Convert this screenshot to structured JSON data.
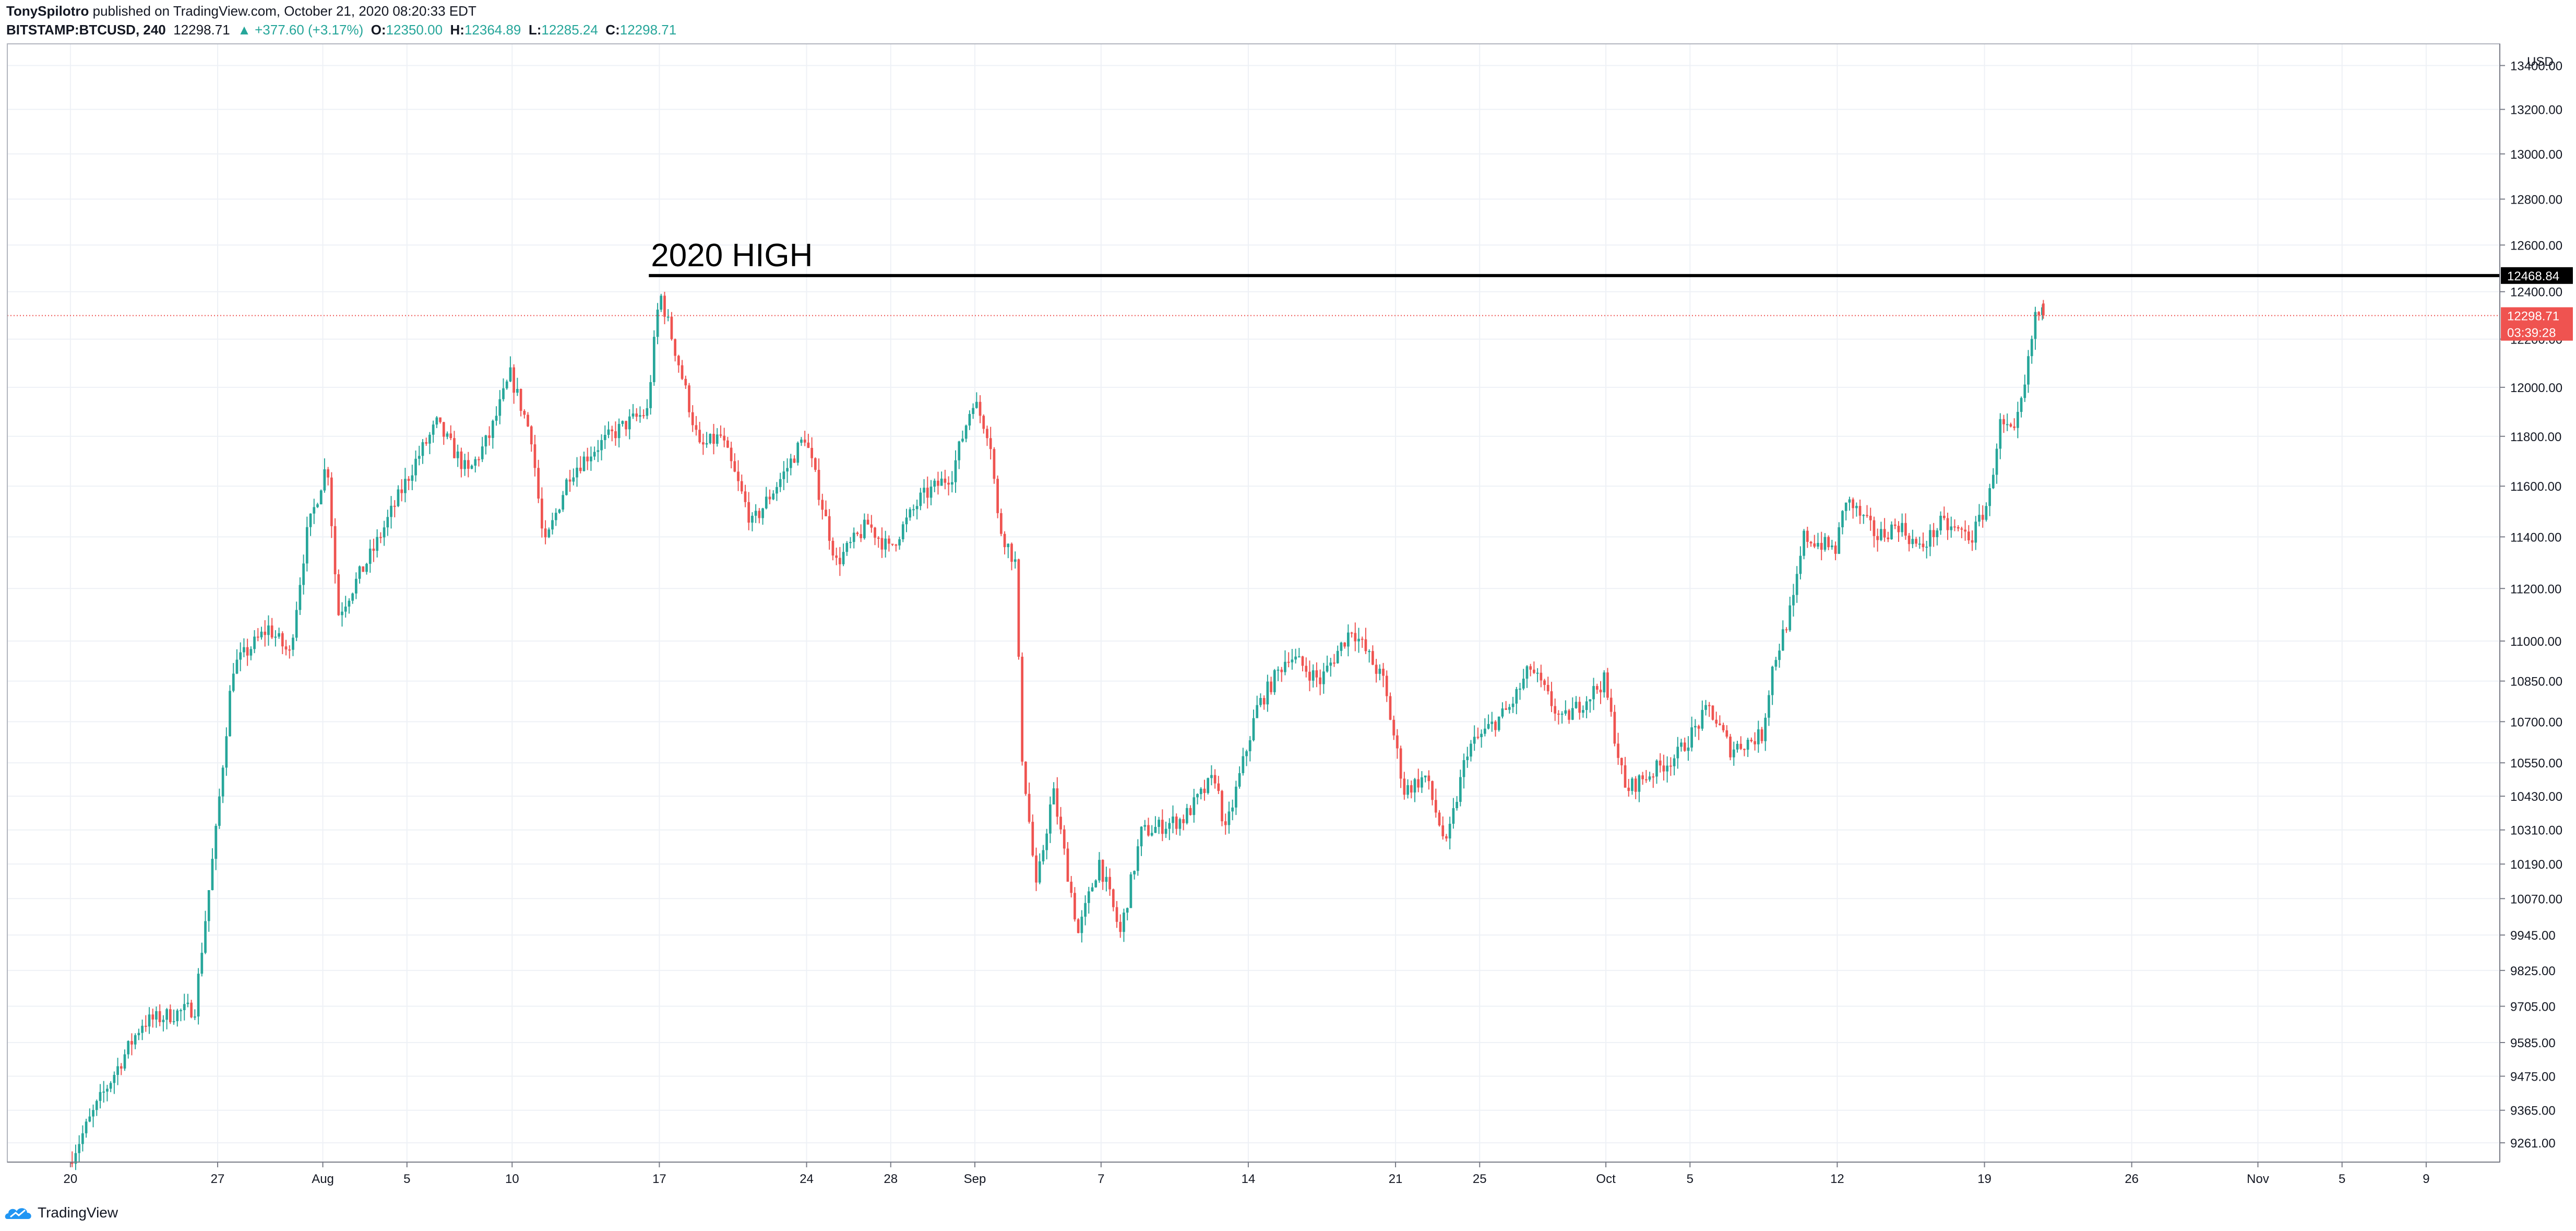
{
  "header": {
    "author": "TonySpilotro",
    "published_text": " published on TradingView.com, October 21, 2020 08:20:33 EDT",
    "symbol": "BITSTAMP:BTCUSD, 240",
    "last": "12298.71",
    "change": "▲ +377.60 (+3.17%)",
    "o_label": "O:",
    "o_value": "12350.00",
    "h_label": "H:",
    "h_value": "12364.89",
    "l_label": "L:",
    "l_value": "12285.24",
    "c_label": "C:",
    "c_value": "12298.71"
  },
  "footer": {
    "brand": "TradingView"
  },
  "colors": {
    "up": "#26a69a",
    "down": "#ef5350",
    "grid": "#eef1f6",
    "text": "#131722",
    "border": "#787b86"
  },
  "chart_data": {
    "type": "candlestick",
    "currency_label": "USD",
    "ylim": [
      9200,
      13500
    ],
    "y_ticks": [
      {
        "v": 9261,
        "label": "9261.00"
      },
      {
        "v": 9365,
        "label": "9365.00"
      },
      {
        "v": 9475,
        "label": "9475.00"
      },
      {
        "v": 9585,
        "label": "9585.00"
      },
      {
        "v": 9705,
        "label": "9705.00"
      },
      {
        "v": 9825,
        "label": "9825.00"
      },
      {
        "v": 9945,
        "label": "9945.00"
      },
      {
        "v": 10070,
        "label": "10070.00"
      },
      {
        "v": 10190,
        "label": "10190.00"
      },
      {
        "v": 10310,
        "label": "10310.00"
      },
      {
        "v": 10430,
        "label": "10430.00"
      },
      {
        "v": 10550,
        "label": "10550.00"
      },
      {
        "v": 10700,
        "label": "10700.00"
      },
      {
        "v": 10850,
        "label": "10850.00"
      },
      {
        "v": 11000,
        "label": "11000.00"
      },
      {
        "v": 11200,
        "label": "11200.00"
      },
      {
        "v": 11400,
        "label": "11400.00"
      },
      {
        "v": 11600,
        "label": "11600.00"
      },
      {
        "v": 11800,
        "label": "11800.00"
      },
      {
        "v": 12000,
        "label": "12000.00"
      },
      {
        "v": 12200,
        "label": "12200.00"
      },
      {
        "v": 12400,
        "label": "12400.00"
      },
      {
        "v": 12600,
        "label": "12600.00"
      },
      {
        "v": 12800,
        "label": "12800.00"
      },
      {
        "v": 13000,
        "label": "13000.00"
      },
      {
        "v": 13200,
        "label": "13200.00"
      },
      {
        "v": 13400,
        "label": "13400.00"
      }
    ],
    "x_ticks": [
      {
        "day": 0,
        "label": "20"
      },
      {
        "day": 7,
        "label": "27"
      },
      {
        "day": 12,
        "label": "Aug"
      },
      {
        "day": 16,
        "label": "5"
      },
      {
        "day": 21,
        "label": "10"
      },
      {
        "day": 28,
        "label": "17"
      },
      {
        "day": 35,
        "label": "24"
      },
      {
        "day": 39,
        "label": "28"
      },
      {
        "day": 43,
        "label": "Sep"
      },
      {
        "day": 49,
        "label": "7"
      },
      {
        "day": 56,
        "label": "14"
      },
      {
        "day": 63,
        "label": "21"
      },
      {
        "day": 67,
        "label": "25"
      },
      {
        "day": 73,
        "label": "Oct"
      },
      {
        "day": 77,
        "label": "5"
      },
      {
        "day": 84,
        "label": "12"
      },
      {
        "day": 91,
        "label": "19"
      },
      {
        "day": 98,
        "label": "26"
      },
      {
        "day": 104,
        "label": "Nov"
      },
      {
        "day": 108,
        "label": "5"
      },
      {
        "day": 112,
        "label": "9"
      }
    ],
    "x_domain_days": [
      -3,
      115.5
    ],
    "key_points": [
      {
        "day": 0.0,
        "price": 9200
      },
      {
        "day": 1.5,
        "price": 9400
      },
      {
        "day": 3.5,
        "price": 9650
      },
      {
        "day": 6.0,
        "price": 9700
      },
      {
        "day": 7.0,
        "price": 10300
      },
      {
        "day": 7.8,
        "price": 10900
      },
      {
        "day": 9.5,
        "price": 11050
      },
      {
        "day": 10.5,
        "price": 10950
      },
      {
        "day": 11.3,
        "price": 11400
      },
      {
        "day": 12.3,
        "price": 11700
      },
      {
        "day": 12.8,
        "price": 11100
      },
      {
        "day": 14.5,
        "price": 11350
      },
      {
        "day": 16.5,
        "price": 11700
      },
      {
        "day": 17.5,
        "price": 11850
      },
      {
        "day": 19.0,
        "price": 11650
      },
      {
        "day": 20.0,
        "price": 11800
      },
      {
        "day": 21.0,
        "price": 12050
      },
      {
        "day": 22.0,
        "price": 11800
      },
      {
        "day": 22.6,
        "price": 11350
      },
      {
        "day": 23.8,
        "price": 11650
      },
      {
        "day": 25.0,
        "price": 11750
      },
      {
        "day": 26.5,
        "price": 11850
      },
      {
        "day": 27.5,
        "price": 11900
      },
      {
        "day": 28.1,
        "price": 12400
      },
      {
        "day": 29.0,
        "price": 12100
      },
      {
        "day": 30.0,
        "price": 11750
      },
      {
        "day": 31.0,
        "price": 11800
      },
      {
        "day": 32.5,
        "price": 11450
      },
      {
        "day": 34.0,
        "price": 11650
      },
      {
        "day": 35.0,
        "price": 11800
      },
      {
        "day": 36.5,
        "price": 11300
      },
      {
        "day": 38.0,
        "price": 11450
      },
      {
        "day": 39.0,
        "price": 11350
      },
      {
        "day": 40.5,
        "price": 11550
      },
      {
        "day": 42.0,
        "price": 11650
      },
      {
        "day": 43.0,
        "price": 11950
      },
      {
        "day": 43.8,
        "price": 11800
      },
      {
        "day": 44.2,
        "price": 11450
      },
      {
        "day": 45.0,
        "price": 11300
      },
      {
        "day": 45.3,
        "price": 10600
      },
      {
        "day": 46.0,
        "price": 10100
      },
      {
        "day": 46.8,
        "price": 10450
      },
      {
        "day": 48.0,
        "price": 9950
      },
      {
        "day": 49.0,
        "price": 10200
      },
      {
        "day": 50.0,
        "price": 9950
      },
      {
        "day": 51.0,
        "price": 10300
      },
      {
        "day": 53.0,
        "price": 10350
      },
      {
        "day": 54.5,
        "price": 10500
      },
      {
        "day": 55.0,
        "price": 10300
      },
      {
        "day": 56.5,
        "price": 10750
      },
      {
        "day": 58.0,
        "price": 10950
      },
      {
        "day": 59.5,
        "price": 10850
      },
      {
        "day": 61.0,
        "price": 11050
      },
      {
        "day": 62.5,
        "price": 10850
      },
      {
        "day": 63.5,
        "price": 10450
      },
      {
        "day": 64.5,
        "price": 10500
      },
      {
        "day": 65.5,
        "price": 10250
      },
      {
        "day": 66.5,
        "price": 10600
      },
      {
        "day": 68.5,
        "price": 10750
      },
      {
        "day": 69.5,
        "price": 10900
      },
      {
        "day": 71.0,
        "price": 10700
      },
      {
        "day": 73.0,
        "price": 10850
      },
      {
        "day": 74.0,
        "price": 10450
      },
      {
        "day": 76.5,
        "price": 10580
      },
      {
        "day": 78.0,
        "price": 10750
      },
      {
        "day": 79.0,
        "price": 10600
      },
      {
        "day": 80.5,
        "price": 10650
      },
      {
        "day": 81.0,
        "price": 10900
      },
      {
        "day": 82.0,
        "price": 11150
      },
      {
        "day": 82.5,
        "price": 11400
      },
      {
        "day": 84.0,
        "price": 11350
      },
      {
        "day": 84.5,
        "price": 11550
      },
      {
        "day": 86.0,
        "price": 11400
      },
      {
        "day": 87.0,
        "price": 11450
      },
      {
        "day": 88.0,
        "price": 11350
      },
      {
        "day": 89.0,
        "price": 11450
      },
      {
        "day": 90.5,
        "price": 11400
      },
      {
        "day": 91.3,
        "price": 11550
      },
      {
        "day": 91.8,
        "price": 11850
      },
      {
        "day": 92.5,
        "price": 11800
      },
      {
        "day": 93.0,
        "price": 12000
      },
      {
        "day": 93.5,
        "price": 12300
      },
      {
        "day": 93.8,
        "price": 12300
      }
    ],
    "last_candle": {
      "day": 93.8,
      "open": 12350.0,
      "high": 12364.89,
      "low": 12285.24,
      "close": 12298.71
    },
    "horizontal_line": {
      "price": 12468.84,
      "label": "12468.84",
      "annotation": "2020 HIGH",
      "start_day": 27.5
    },
    "current_price": {
      "price": 12298.71,
      "label": "12298.71",
      "countdown": "03:39:28"
    }
  }
}
